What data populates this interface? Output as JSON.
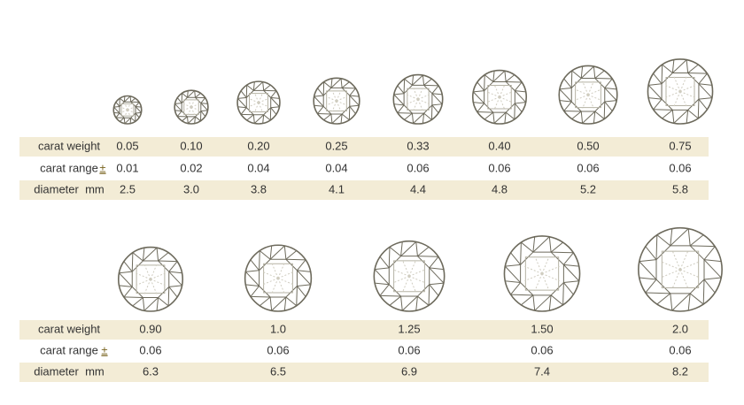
{
  "tables": [
    {
      "rows": [
        {
          "label": "carat weight",
          "values": [
            "0.05",
            "0.10",
            "0.20",
            "0.25",
            "0.33",
            "0.40",
            "0.50",
            "0.75"
          ]
        },
        {
          "label": "carat range",
          "symbol": "±",
          "values": [
            "0.01",
            "0.02",
            "0.04",
            "0.04",
            "0.06",
            "0.06",
            "0.06",
            "0.06"
          ]
        },
        {
          "label": "diameter  mm",
          "values": [
            "2.5",
            "3.0",
            "3.8",
            "4.1",
            "4.4",
            "4.8",
            "5.2",
            "5.8"
          ]
        }
      ]
    },
    {
      "rows": [
        {
          "label": "carat weight",
          "values": [
            "0.90",
            "1.0",
            "1.25",
            "1.50",
            "2.0"
          ]
        },
        {
          "label": "carat range",
          "symbol": "±",
          "values": [
            "0.06",
            "0.06",
            "0.06",
            "0.06",
            "0.06"
          ]
        },
        {
          "label": "diameter  mm",
          "values": [
            "6.3",
            "6.5",
            "6.9",
            "7.4",
            "8.2"
          ]
        }
      ]
    }
  ]
}
